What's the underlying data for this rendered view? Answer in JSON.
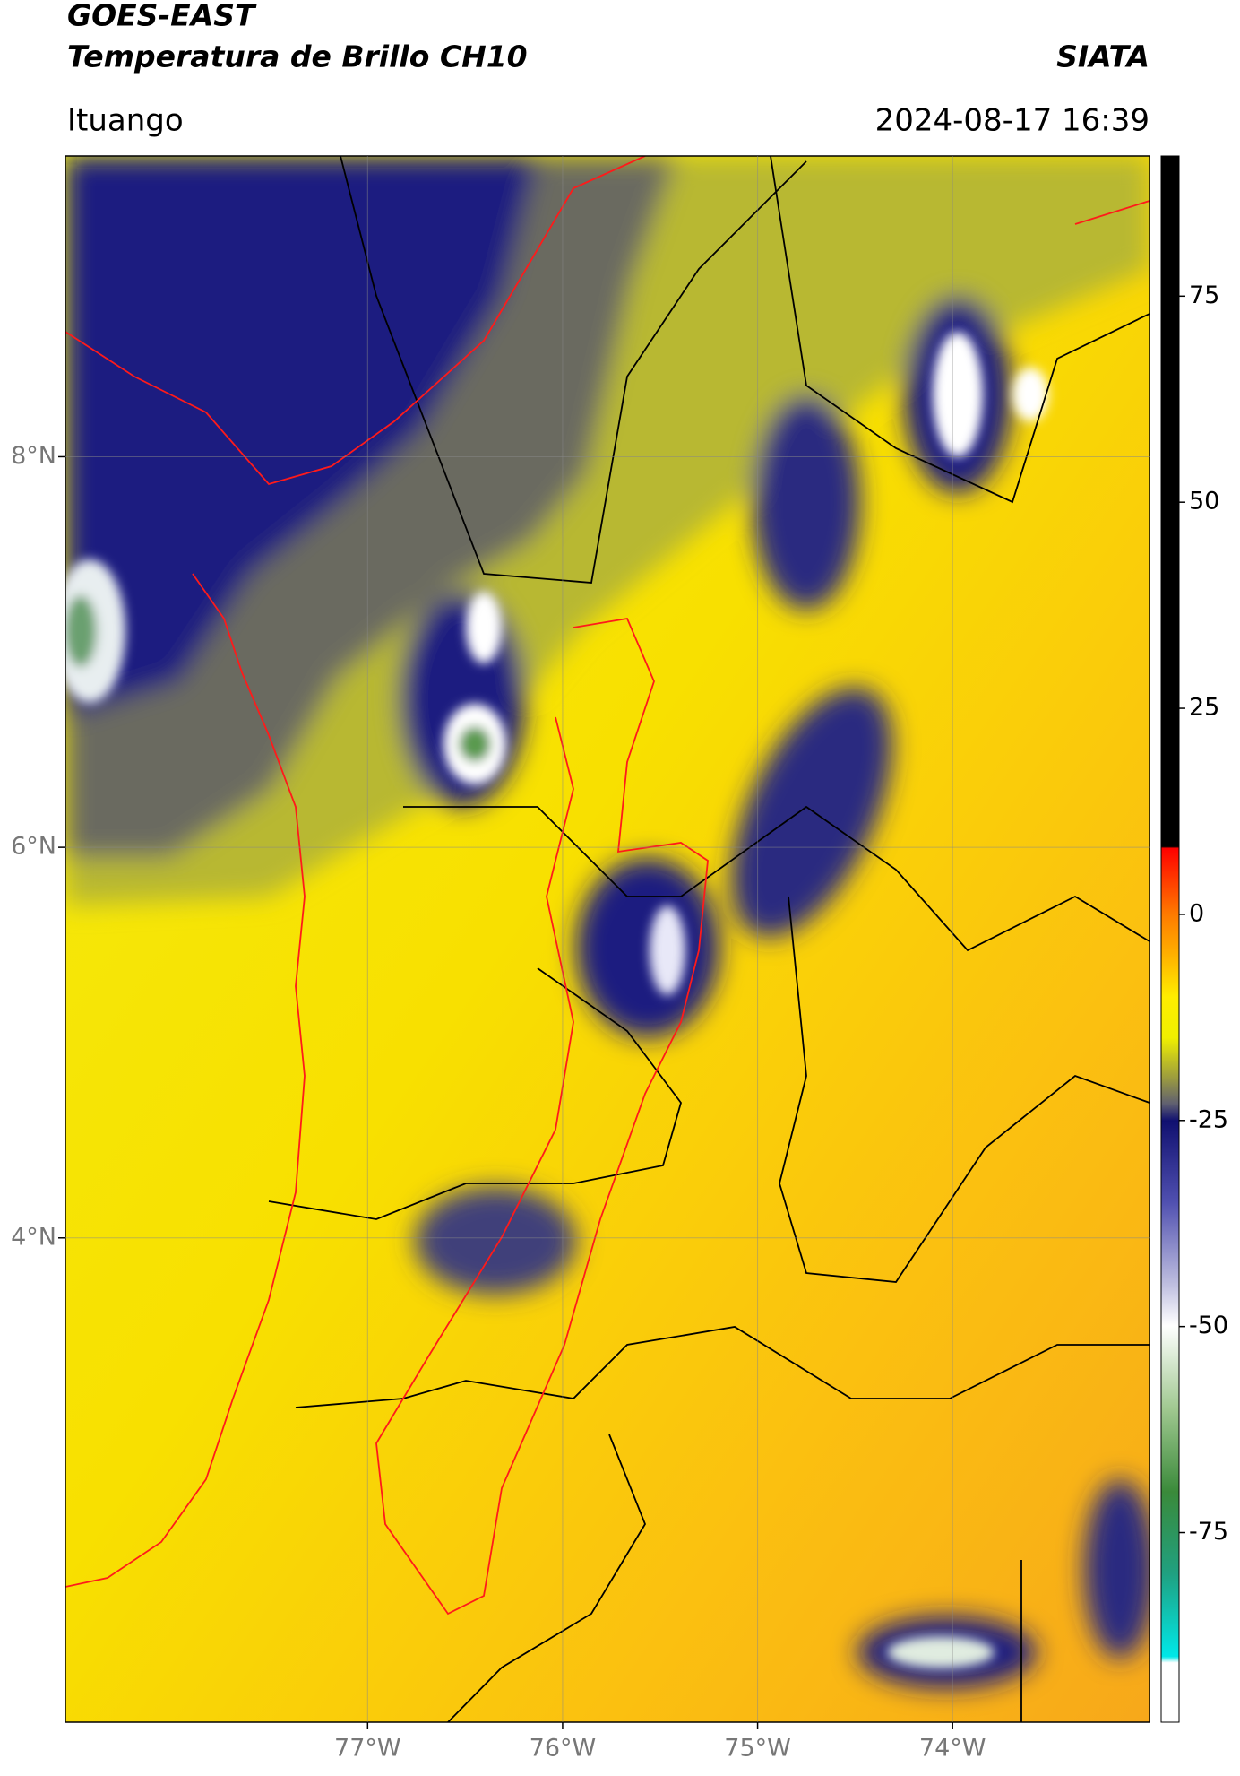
{
  "header": {
    "satellite": "GOES-EAST",
    "product": "Temperatura de Brillo CH10",
    "source": "SIATA",
    "location": "Ituango",
    "datetime": "2024-08-17 16:39"
  },
  "map": {
    "xlim": [
      -78.55,
      -72.99
    ],
    "ylim": [
      1.52,
      9.54
    ],
    "xticks": [
      {
        "value": -77,
        "label": "77°W"
      },
      {
        "value": -76,
        "label": "76°W"
      },
      {
        "value": -75,
        "label": "75°W"
      },
      {
        "value": -74,
        "label": "74°W"
      }
    ],
    "yticks": [
      {
        "value": 4,
        "label": "4°N"
      },
      {
        "value": 6,
        "label": "6°N"
      },
      {
        "value": 8,
        "label": "8°N"
      }
    ],
    "grid": true
  },
  "colorbar": {
    "lim": [
      -98,
      92
    ],
    "ticks": [
      -75,
      -50,
      -25,
      0,
      25,
      50,
      75
    ]
  }
}
